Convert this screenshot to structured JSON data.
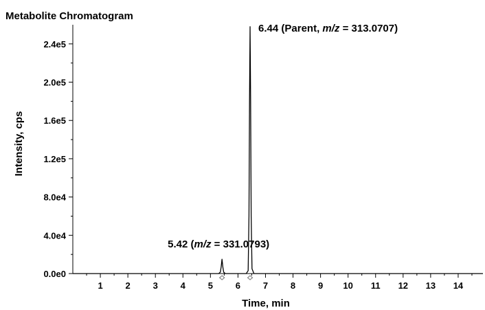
{
  "chart_data": {
    "type": "line",
    "title": "Metabolite Chromatogram",
    "xlabel": "Time, min",
    "ylabel": "Intensity, cps",
    "xlim": [
      0,
      14.9
    ],
    "ylim": [
      0,
      260000
    ],
    "x_ticks": [
      1,
      2,
      3,
      4,
      5,
      6,
      7,
      8,
      9,
      10,
      11,
      12,
      13,
      14
    ],
    "x_tick_labels": [
      "1",
      "2",
      "3",
      "4",
      "5",
      "6",
      "7",
      "8",
      "9",
      "10",
      "11",
      "12",
      "13",
      "14"
    ],
    "y_ticks": [
      0,
      40000,
      80000,
      120000,
      160000,
      200000,
      240000
    ],
    "y_tick_labels": [
      "0.0e0",
      "4.0e4",
      "8.0e4",
      "1.2e5",
      "1.6e5",
      "2.0e5",
      "2.4e5"
    ],
    "grid": false,
    "line_color": "#000000",
    "marker_color": "#888888",
    "series": [
      {
        "x": [
          0,
          5.3,
          5.36,
          5.39,
          5.42,
          5.45,
          5.48,
          5.54,
          6.3,
          6.37,
          6.4,
          6.42,
          6.44,
          6.46,
          6.48,
          6.51,
          6.58,
          14.9
        ],
        "y": [
          0,
          0,
          1500,
          7000,
          15000,
          7000,
          1500,
          0,
          0,
          3000,
          60000,
          180000,
          258000,
          180000,
          60000,
          5000,
          0,
          0
        ]
      }
    ],
    "peaks": [
      {
        "x": 5.42,
        "y": 15000,
        "label_main": "5.42 (",
        "label_italic": "m/z",
        "label_rest": " = 331.0793)"
      },
      {
        "x": 6.44,
        "y": 258000,
        "label_main": "6.44 (Parent, ",
        "label_italic": "m/z",
        "label_rest": " = 313.0707)"
      }
    ]
  }
}
